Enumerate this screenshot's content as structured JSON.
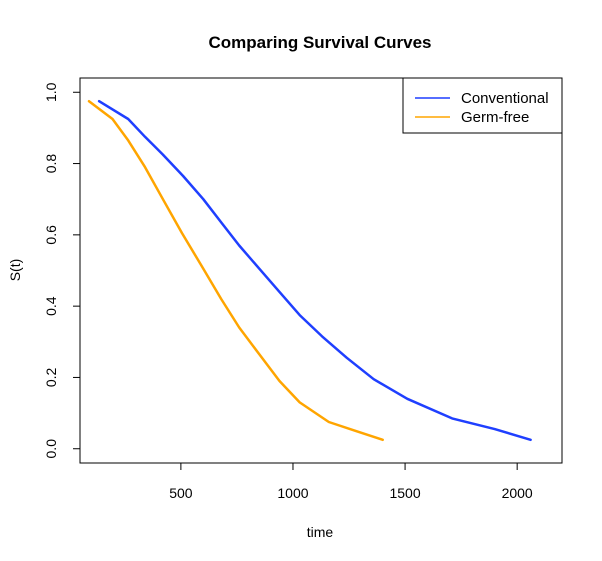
{
  "chart_data": {
    "type": "line",
    "title": "Comparing Survival Curves",
    "xlabel": "time",
    "ylabel": "S(t)",
    "xlim": [
      50,
      2200
    ],
    "ylim": [
      -0.04,
      1.04
    ],
    "xticks": [
      500,
      1000,
      1500,
      2000
    ],
    "yticks": [
      0.0,
      0.2,
      0.4,
      0.6,
      0.8,
      1.0
    ],
    "xtick_labels": [
      "500",
      "1000",
      "1500",
      "2000"
    ],
    "ytick_labels": [
      "0.0",
      "0.2",
      "0.4",
      "0.6",
      "0.8",
      "1.0"
    ],
    "grid": false,
    "legend_position": "top-right",
    "series": [
      {
        "name": "Conventional",
        "color": "#1f3fff",
        "x": [
          135,
          265,
          340,
          420,
          510,
          600,
          680,
          760,
          850,
          940,
          1030,
          1130,
          1240,
          1360,
          1510,
          1710,
          1900,
          2060
        ],
        "y": [
          0.975,
          0.925,
          0.875,
          0.825,
          0.765,
          0.7,
          0.635,
          0.57,
          0.505,
          0.44,
          0.375,
          0.315,
          0.255,
          0.195,
          0.14,
          0.085,
          0.055,
          0.025
        ]
      },
      {
        "name": "Germ-free",
        "color": "#ffa500",
        "x": [
          90,
          195,
          265,
          340,
          420,
          505,
          595,
          680,
          760,
          850,
          940,
          1030,
          1160,
          1280,
          1400
        ],
        "y": [
          0.975,
          0.925,
          0.865,
          0.79,
          0.7,
          0.605,
          0.51,
          0.42,
          0.34,
          0.265,
          0.19,
          0.13,
          0.075,
          0.05,
          0.025
        ]
      }
    ]
  }
}
